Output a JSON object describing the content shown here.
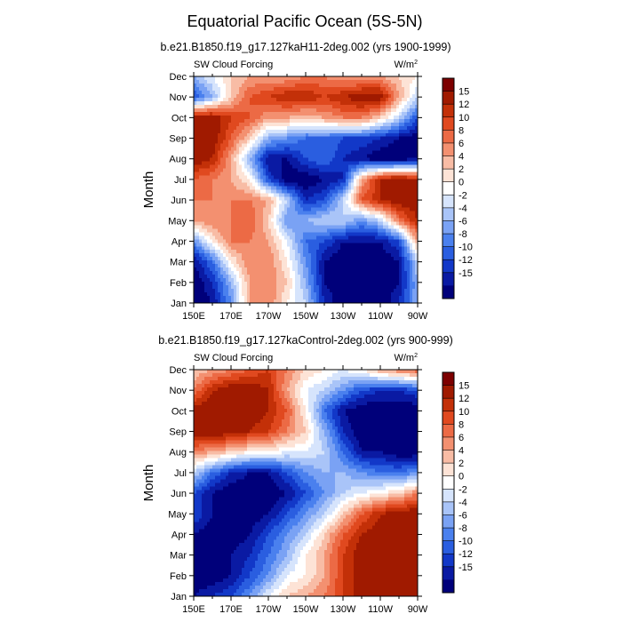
{
  "chart_data": {
    "type": "heatmap",
    "title": "Equatorial Pacific Ocean (5S-5N)",
    "ylabel": "Month",
    "x_ticks": [
      "150E",
      "170E",
      "170W",
      "150W",
      "130W",
      "110W",
      "90W"
    ],
    "x_range_deg_east": [
      150,
      270
    ],
    "y_ticks": [
      "Jan",
      "Feb",
      "Mar",
      "Apr",
      "May",
      "Jun",
      "Jul",
      "Aug",
      "Sep",
      "Oct",
      "Nov",
      "Dec"
    ],
    "colorbar": {
      "levels": [
        -16,
        -14,
        -12,
        -10,
        -8,
        -6,
        -4,
        -2,
        0,
        2,
        4,
        6,
        8,
        10,
        12,
        14,
        16
      ],
      "labels": [
        "15",
        "12",
        "10",
        "8",
        "6",
        "4",
        "2",
        "0",
        "-2",
        "-4",
        "-6",
        "-8",
        "-10",
        "-12",
        "-15"
      ],
      "colors": [
        "#00007a",
        "#0a1aa3",
        "#1238c8",
        "#2a5ee0",
        "#4a80ee",
        "#7aa2f4",
        "#a9c4f8",
        "#d6e4fc",
        "#ffffff",
        "#fde3d6",
        "#f8bca5",
        "#f39070",
        "#ec6a45",
        "#e0491f",
        "#c33008",
        "#a01a00",
        "#7d0000"
      ]
    },
    "panels": [
      {
        "subtitle": "b.e21.B1850.f19_g17.127kaH11-2deg.002 (yrs 1900-1999)",
        "left_label": "SW Cloud Forcing",
        "right_label": "W/m",
        "unit_exp": "2",
        "longitudes": [
          150,
          160,
          170,
          180,
          190,
          200,
          210,
          220,
          230,
          240,
          250,
          260,
          270
        ],
        "months": [
          "Jan",
          "Feb",
          "Mar",
          "Apr",
          "May",
          "Jun",
          "Jul",
          "Aug",
          "Sep",
          "Oct",
          "Nov",
          "Dec"
        ],
        "values": [
          [
            -16,
            -14,
            -6,
            6,
            8,
            2,
            -2,
            -12,
            -16,
            -16,
            -16,
            -12,
            -4
          ],
          [
            -16,
            -12,
            -4,
            6,
            8,
            4,
            -4,
            -14,
            -16,
            -16,
            -16,
            -14,
            -4
          ],
          [
            -14,
            -8,
            2,
            8,
            8,
            2,
            -6,
            -14,
            -16,
            -16,
            -16,
            -14,
            -2
          ],
          [
            -6,
            2,
            8,
            8,
            6,
            0,
            -8,
            -10,
            -14,
            -14,
            -14,
            -10,
            6
          ],
          [
            6,
            8,
            8,
            10,
            4,
            -6,
            -4,
            -2,
            -2,
            -6,
            -2,
            8,
            14
          ],
          [
            8,
            8,
            8,
            8,
            6,
            -2,
            -12,
            -10,
            -2,
            10,
            14,
            16,
            16
          ],
          [
            10,
            8,
            6,
            2,
            -10,
            -16,
            -16,
            -14,
            -12,
            6,
            14,
            16,
            14
          ],
          [
            16,
            14,
            6,
            -4,
            -14,
            -14,
            -10,
            -8,
            -12,
            -14,
            -16,
            -16,
            -14
          ],
          [
            16,
            16,
            10,
            4,
            -4,
            -6,
            -8,
            -8,
            -10,
            -10,
            -12,
            -14,
            -16
          ],
          [
            16,
            16,
            12,
            10,
            6,
            6,
            4,
            6,
            8,
            8,
            4,
            -2,
            -10
          ],
          [
            -10,
            -4,
            4,
            10,
            12,
            14,
            14,
            12,
            14,
            16,
            16,
            6,
            -2
          ],
          [
            -4,
            0,
            4,
            6,
            6,
            6,
            8,
            8,
            6,
            6,
            6,
            4,
            2
          ]
        ]
      },
      {
        "subtitle": "b.e21.B1850.f19_g17.127kaControl-2deg.002 (yrs 900-999)",
        "left_label": "SW Cloud Forcing",
        "right_label": "W/m",
        "unit_exp": "2",
        "longitudes": [
          150,
          160,
          170,
          180,
          190,
          200,
          210,
          220,
          230,
          240,
          250,
          260,
          270
        ],
        "months": [
          "Jan",
          "Feb",
          "Mar",
          "Apr",
          "May",
          "Jun",
          "Jul",
          "Aug",
          "Sep",
          "Oct",
          "Nov",
          "Dec"
        ],
        "values": [
          [
            -14,
            -12,
            -10,
            -6,
            0,
            4,
            6,
            8,
            12,
            16,
            16,
            16,
            16
          ],
          [
            -16,
            -16,
            -14,
            -10,
            -6,
            0,
            2,
            6,
            12,
            16,
            16,
            16,
            16
          ],
          [
            -16,
            -16,
            -14,
            -12,
            -8,
            -4,
            2,
            6,
            12,
            16,
            16,
            16,
            16
          ],
          [
            -14,
            -16,
            -16,
            -14,
            -10,
            -6,
            -2,
            4,
            10,
            14,
            16,
            16,
            16
          ],
          [
            -10,
            -14,
            -16,
            -16,
            -14,
            -10,
            -6,
            -2,
            4,
            10,
            14,
            16,
            16
          ],
          [
            -10,
            -14,
            -16,
            -16,
            -16,
            -14,
            -10,
            -6,
            -2,
            0,
            2,
            4,
            8
          ],
          [
            -2,
            -8,
            -12,
            -14,
            -14,
            -10,
            -6,
            -4,
            -4,
            -6,
            -8,
            -8,
            -6
          ],
          [
            8,
            6,
            4,
            2,
            2,
            0,
            0,
            -2,
            -8,
            -14,
            -14,
            -16,
            -16
          ],
          [
            16,
            16,
            16,
            14,
            12,
            8,
            4,
            -4,
            -12,
            -16,
            -16,
            -16,
            -16
          ],
          [
            16,
            16,
            16,
            16,
            14,
            10,
            2,
            -8,
            -14,
            -16,
            -16,
            -16,
            -16
          ],
          [
            8,
            14,
            16,
            16,
            14,
            6,
            0,
            -2,
            -6,
            -10,
            -12,
            -12,
            -10
          ],
          [
            4,
            6,
            8,
            10,
            12,
            8,
            4,
            2,
            0,
            2,
            6,
            8,
            10
          ]
        ]
      }
    ]
  }
}
